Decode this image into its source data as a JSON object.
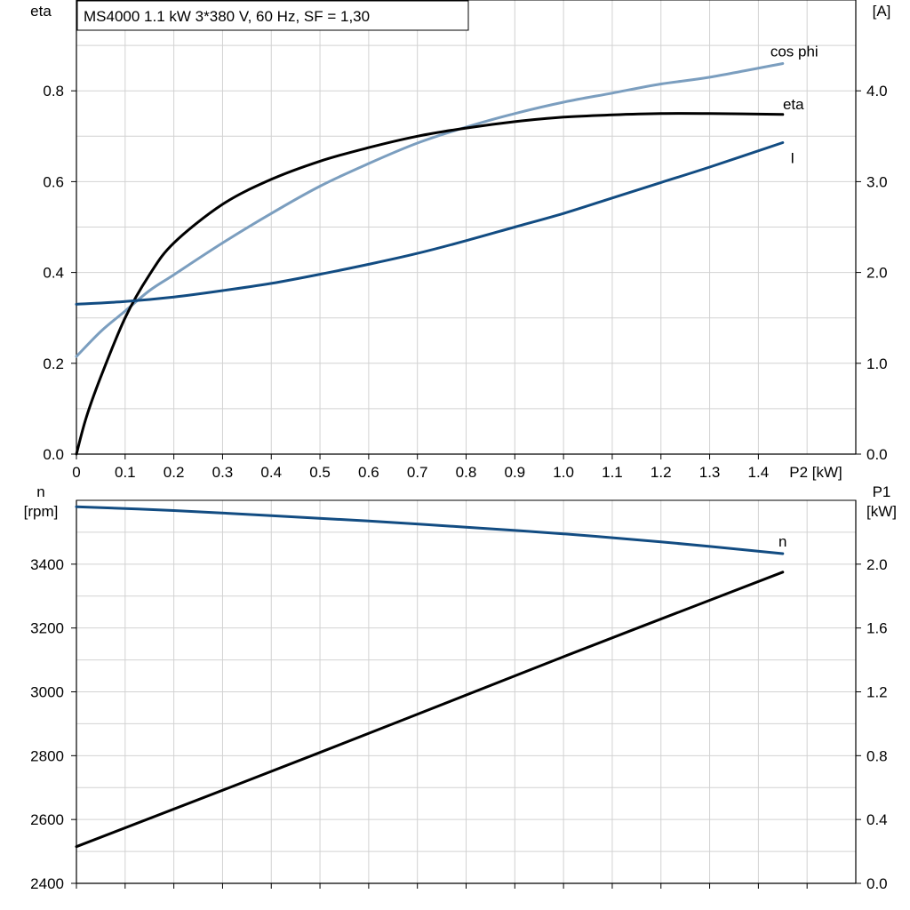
{
  "colors": {
    "cos_phi": "#7b9ebf",
    "eta": "#000000",
    "I": "#124c82",
    "n": "#124c82",
    "P1": "#000000"
  },
  "chart_data": [
    {
      "type": "line",
      "title": "MS4000   1.1 kW   3*380 V, 60 Hz, SF = 1,30",
      "xlabel": "P2 [kW]",
      "ylabel_left_line1": "cos phi",
      "ylabel_left_line2": "eta",
      "ylabel_right_line1": "I",
      "ylabel_right_line2": "[A]",
      "xlim": [
        0,
        1.6
      ],
      "ylim_left": [
        0,
        1.0
      ],
      "ylim_right": [
        0,
        5.0
      ],
      "x_ticks": [
        0,
        0.1,
        0.2,
        0.3,
        0.4,
        0.5,
        0.6,
        0.7,
        0.8,
        0.9,
        1.0,
        1.1,
        1.2,
        1.3,
        1.4
      ],
      "x_tick_labels": [
        "0",
        "0.1",
        "0.2",
        "0.3",
        "0.4",
        "0.5",
        "0.6",
        "0.7",
        "0.8",
        "0.9",
        "1.0",
        "1.1",
        "1.2",
        "1.3",
        "1.4"
      ],
      "y_left_ticks": [
        0,
        0.2,
        0.4,
        0.6,
        0.8
      ],
      "y_left_tick_labels": [
        "0.0",
        "0.2",
        "0.4",
        "0.6",
        "0.8"
      ],
      "y_right_ticks": [
        0,
        1,
        2,
        3,
        4
      ],
      "y_right_tick_labels": [
        "0.0",
        "1.0",
        "2.0",
        "3.0",
        "4.0"
      ],
      "grid": true,
      "series": [
        {
          "name": "cos phi",
          "axis": "left",
          "color": "#7b9ebf",
          "x": [
            0,
            0.05,
            0.1,
            0.15,
            0.2,
            0.3,
            0.4,
            0.5,
            0.6,
            0.7,
            0.8,
            0.9,
            1.0,
            1.1,
            1.2,
            1.3,
            1.45
          ],
          "y": [
            0.215,
            0.27,
            0.315,
            0.36,
            0.395,
            0.465,
            0.53,
            0.59,
            0.64,
            0.685,
            0.72,
            0.75,
            0.775,
            0.795,
            0.815,
            0.83,
            0.86
          ]
        },
        {
          "name": "eta",
          "axis": "left",
          "color": "#000000",
          "x": [
            0,
            0.02,
            0.05,
            0.1,
            0.15,
            0.2,
            0.3,
            0.4,
            0.5,
            0.6,
            0.7,
            0.8,
            0.9,
            1.0,
            1.1,
            1.2,
            1.3,
            1.45
          ],
          "y": [
            0.0,
            0.08,
            0.17,
            0.3,
            0.395,
            0.465,
            0.55,
            0.605,
            0.645,
            0.675,
            0.7,
            0.718,
            0.732,
            0.742,
            0.747,
            0.75,
            0.75,
            0.748
          ]
        },
        {
          "name": "I",
          "axis": "right",
          "color": "#124c82",
          "x": [
            0,
            0.1,
            0.2,
            0.3,
            0.4,
            0.5,
            0.6,
            0.7,
            0.8,
            0.9,
            1.0,
            1.1,
            1.2,
            1.3,
            1.45
          ],
          "y": [
            1.65,
            1.68,
            1.73,
            1.8,
            1.88,
            1.98,
            2.09,
            2.21,
            2.35,
            2.5,
            2.65,
            2.82,
            2.99,
            3.16,
            3.43
          ]
        }
      ]
    },
    {
      "type": "line",
      "ylabel_left_line1": "n",
      "ylabel_left_line2": "[rpm]",
      "ylabel_right_line1": "P1",
      "ylabel_right_line2": "[kW]",
      "xlim": [
        0,
        1.6
      ],
      "ylim_left": [
        2400,
        3600
      ],
      "ylim_right": [
        0,
        2.4
      ],
      "y_left_ticks": [
        2400,
        2600,
        2800,
        3000,
        3200,
        3400
      ],
      "y_left_tick_labels": [
        "2400",
        "2600",
        "2800",
        "3000",
        "3200",
        "3400"
      ],
      "y_right_ticks": [
        0,
        0.4,
        0.8,
        1.2,
        1.6,
        2.0
      ],
      "y_right_tick_labels": [
        "0.0",
        "0.4",
        "0.8",
        "1.2",
        "1.6",
        "2.0"
      ],
      "grid": true,
      "series": [
        {
          "name": "n",
          "axis": "left",
          "color": "#124c82",
          "x": [
            0,
            0.2,
            0.4,
            0.6,
            0.8,
            1.0,
            1.2,
            1.45
          ],
          "y": [
            3580,
            3568,
            3552,
            3535,
            3516,
            3495,
            3470,
            3433
          ]
        },
        {
          "axis": "right",
          "color": "#000000",
          "x": [
            0,
            0.5,
            1.0,
            1.45
          ],
          "y": [
            0.23,
            0.82,
            1.42,
            1.95
          ]
        }
      ]
    }
  ]
}
